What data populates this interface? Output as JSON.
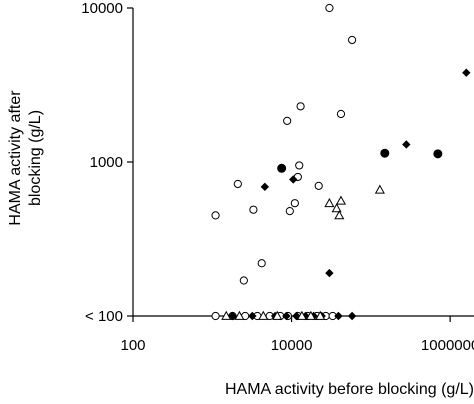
{
  "chart_data": {
    "type": "scatter",
    "xlabel": "HAMA activity before blocking (g/L)",
    "ylabel_lines": [
      "HAMA activity after",
      "blocking (g/L)"
    ],
    "x_scale": "log",
    "y_scale": "log",
    "xlim": [
      100,
      2000000
    ],
    "ylim": [
      100,
      10000
    ],
    "x_ticks": [
      {
        "value": 100,
        "label": "100"
      },
      {
        "value": 10000,
        "label": "10000"
      },
      {
        "value": 1000000,
        "label": "1000000"
      }
    ],
    "y_ticks": [
      {
        "value": 100,
        "label": "< 100"
      },
      {
        "value": 1000,
        "label": "1000"
      },
      {
        "value": 10000,
        "label": "10000"
      }
    ],
    "grid": false,
    "legend": "none",
    "series": [
      {
        "marker": "open-circle",
        "points": [
          {
            "x": 1100,
            "y": 450
          },
          {
            "x": 2100,
            "y": 720
          },
          {
            "x": 2500,
            "y": 170
          },
          {
            "x": 3300,
            "y": 490
          },
          {
            "x": 4200,
            "y": 220
          },
          {
            "x": 8800,
            "y": 1850
          },
          {
            "x": 9500,
            "y": 480
          },
          {
            "x": 11000,
            "y": 540
          },
          {
            "x": 12000,
            "y": 800
          },
          {
            "x": 12500,
            "y": 950
          },
          {
            "x": 13000,
            "y": 2300
          },
          {
            "x": 22000,
            "y": 700
          },
          {
            "x": 30000,
            "y": 10000
          },
          {
            "x": 42000,
            "y": 2050
          },
          {
            "x": 58000,
            "y": 6200
          },
          {
            "x": 1100,
            "y": 100
          },
          {
            "x": 1800,
            "y": 100
          },
          {
            "x": 2600,
            "y": 100
          },
          {
            "x": 3700,
            "y": 100
          },
          {
            "x": 5300,
            "y": 100
          },
          {
            "x": 7200,
            "y": 100
          },
          {
            "x": 9000,
            "y": 100
          },
          {
            "x": 12000,
            "y": 100
          },
          {
            "x": 16000,
            "y": 100
          },
          {
            "x": 21000,
            "y": 100
          },
          {
            "x": 27000,
            "y": 100
          },
          {
            "x": 33000,
            "y": 100
          }
        ]
      },
      {
        "marker": "filled-diamond",
        "points": [
          {
            "x": 4600,
            "y": 690
          },
          {
            "x": 10500,
            "y": 770
          },
          {
            "x": 30000,
            "y": 190
          },
          {
            "x": 280000,
            "y": 1300
          },
          {
            "x": 1600000,
            "y": 3800
          },
          {
            "x": 1800,
            "y": 100
          },
          {
            "x": 3200,
            "y": 100
          },
          {
            "x": 6200,
            "y": 100
          },
          {
            "x": 8600,
            "y": 100
          },
          {
            "x": 11500,
            "y": 100
          },
          {
            "x": 15000,
            "y": 100
          },
          {
            "x": 19000,
            "y": 100
          },
          {
            "x": 24000,
            "y": 100
          },
          {
            "x": 39000,
            "y": 100
          },
          {
            "x": 58000,
            "y": 100
          }
        ]
      },
      {
        "marker": "filled-circle",
        "points": [
          {
            "x": 7500,
            "y": 910
          },
          {
            "x": 150000,
            "y": 1140
          },
          {
            "x": 700000,
            "y": 1130
          }
        ]
      },
      {
        "marker": "open-triangle",
        "points": [
          {
            "x": 30000,
            "y": 540
          },
          {
            "x": 37000,
            "y": 500
          },
          {
            "x": 40000,
            "y": 450
          },
          {
            "x": 42000,
            "y": 560
          },
          {
            "x": 130000,
            "y": 660
          },
          {
            "x": 1500,
            "y": 100
          },
          {
            "x": 2200,
            "y": 100
          },
          {
            "x": 4400,
            "y": 100
          },
          {
            "x": 6600,
            "y": 100
          },
          {
            "x": 13500,
            "y": 100
          },
          {
            "x": 17500,
            "y": 100
          },
          {
            "x": 23000,
            "y": 100
          }
        ]
      }
    ]
  }
}
